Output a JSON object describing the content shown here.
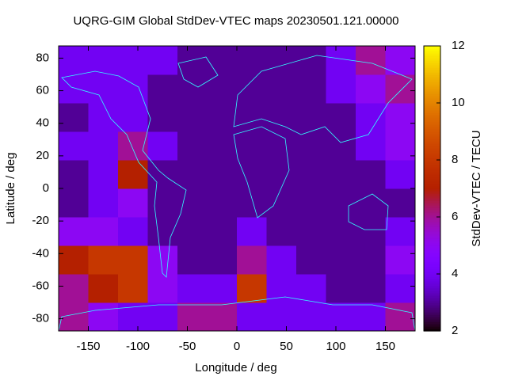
{
  "chart_data": {
    "type": "heatmap",
    "title": "UQRG-GIM Global StdDev-VTEC maps 20230501.121.00000",
    "x_label": "Longitude / deg",
    "y_label": "Latitude / deg",
    "colorbar_label": "StdDev-VTEC / TECU",
    "colormap": "gnuplot",
    "xlim": [
      -180,
      180
    ],
    "ylim": [
      -87.5,
      87.5
    ],
    "xticks": [
      -150,
      -100,
      -50,
      0,
      50,
      100,
      150
    ],
    "yticks": [
      -80,
      -60,
      -40,
      -20,
      0,
      20,
      40,
      60,
      80
    ],
    "clim": [
      2,
      12
    ],
    "cticks": [
      2,
      4,
      6,
      8,
      10,
      12
    ],
    "xbins": [
      -180,
      -150,
      -120,
      -90,
      -60,
      -30,
      0,
      30,
      60,
      90,
      120,
      150,
      180
    ],
    "ybins": [
      -87.5,
      -70,
      -52.5,
      -35,
      -17.5,
      0,
      17.5,
      35,
      52.5,
      70,
      87.5
    ],
    "z": [
      [
        6,
        5,
        4,
        4,
        6,
        6,
        4,
        4,
        4,
        4,
        4,
        6
      ],
      [
        6,
        7,
        8,
        5,
        4,
        4,
        8,
        4,
        4,
        3,
        3,
        4
      ],
      [
        7,
        8,
        8,
        5,
        3,
        3,
        6,
        4,
        3,
        3,
        3,
        5
      ],
      [
        5,
        5,
        4,
        3,
        3,
        3,
        4,
        3,
        3,
        3,
        3,
        4
      ],
      [
        3,
        4,
        5,
        3,
        3,
        3,
        3,
        3,
        3,
        3,
        3,
        3
      ],
      [
        3,
        4,
        7,
        3,
        3,
        3,
        3,
        3,
        3,
        3,
        3,
        4
      ],
      [
        4,
        4,
        6,
        4,
        3,
        3,
        3,
        3,
        3,
        3,
        4,
        5
      ],
      [
        3,
        4,
        4,
        3,
        3,
        3,
        3,
        3,
        3,
        3,
        4,
        5
      ],
      [
        4,
        4,
        4,
        3,
        3,
        3,
        3,
        3,
        3,
        4,
        5,
        6
      ],
      [
        4,
        4,
        4,
        4,
        3,
        3,
        3,
        3,
        3,
        4,
        6,
        5
      ]
    ]
  }
}
